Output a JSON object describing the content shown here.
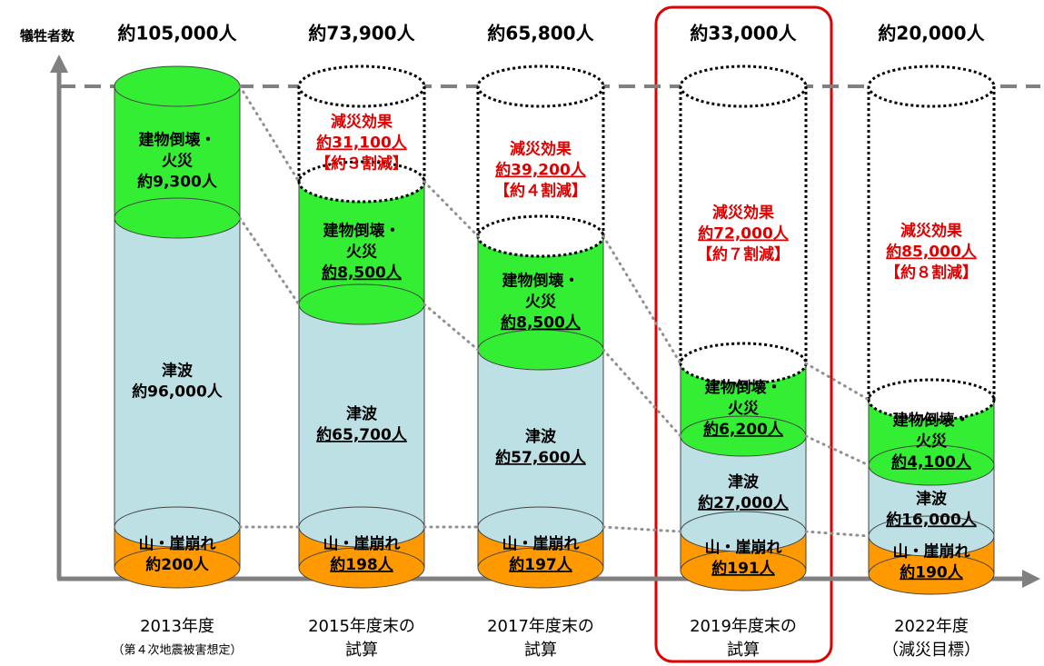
{
  "y_axis_label": "犠牲者数",
  "columns": [
    {
      "total": "約105,000人",
      "building_fire": [
        "建物倒壊・",
        "火災",
        "約9,300人"
      ],
      "tsunami": [
        "津波",
        "約96,000人"
      ],
      "landslide": [
        "山・崖崩れ",
        "約200人"
      ],
      "caption": [
        "2013年度",
        "（第４次地震被害想定）"
      ]
    },
    {
      "total": "約73,900人",
      "effect": [
        "減災効果",
        "約31,100人",
        "【約３割減】"
      ],
      "building_fire": [
        "建物倒壊・",
        "火災",
        "約8,500人"
      ],
      "tsunami": [
        "津波",
        "約65,700人"
      ],
      "landslide": [
        "山・崖崩れ",
        "約198人"
      ],
      "caption": [
        "2015年度末の",
        "試算"
      ]
    },
    {
      "total": "約65,800人",
      "effect": [
        "減災効果",
        "約39,200人",
        "【約４割減】"
      ],
      "building_fire": [
        "建物倒壊・",
        "火災",
        "約8,500人"
      ],
      "tsunami": [
        "津波",
        "約57,600人"
      ],
      "landslide": [
        "山・崖崩れ",
        "約197人"
      ],
      "caption": [
        "2017年度末の",
        "試算"
      ]
    },
    {
      "total": "約33,000人",
      "effect": [
        "減災効果",
        "約72,000人",
        "【約７割減】"
      ],
      "building_fire": [
        "建物倒壊・",
        "火災",
        "約6,200人"
      ],
      "tsunami": [
        "津波",
        "約27,000人"
      ],
      "landslide": [
        "山・崖崩れ",
        "約191人"
      ],
      "caption": [
        "2019年度末の",
        "試算"
      ]
    },
    {
      "total": "約20,000人",
      "effect": [
        "減災効果",
        "約85,000人",
        "【約８割減】"
      ],
      "building_fire": [
        "建物倒壊・",
        "火災",
        "約4,100人"
      ],
      "tsunami": [
        "津波",
        "約16,000人"
      ],
      "landslide": [
        "山・崖崩れ",
        "約190人"
      ],
      "caption": [
        "2022年度",
        "（減災目標）"
      ]
    }
  ]
}
